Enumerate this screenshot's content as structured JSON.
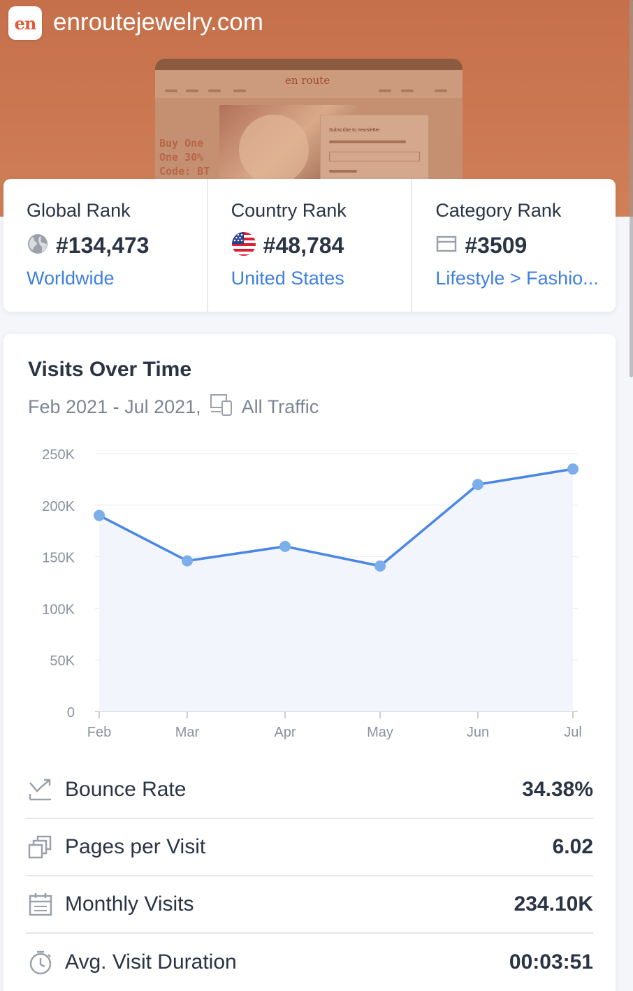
{
  "site": {
    "domain": "enroutejewelry.com",
    "logo_text": "en"
  },
  "preview": {
    "brand": "en route",
    "promo_lines": [
      "Buy One",
      "One 30%",
      "Code: BT"
    ],
    "modal_title": "Subscribe to newsletter"
  },
  "ranks": [
    {
      "title": "Global Rank",
      "icon": "globe-icon",
      "value": "#134,473",
      "link": "Worldwide"
    },
    {
      "title": "Country Rank",
      "icon": "us-flag-icon",
      "value": "#48,784",
      "link": "United States"
    },
    {
      "title": "Category Rank",
      "icon": "category-icon",
      "value": "#3509",
      "link": "Lifestyle > Fashio..."
    }
  ],
  "visits": {
    "title": "Visits Over Time",
    "period": "Feb 2021 - Jul 2021,",
    "traffic": "All Traffic"
  },
  "chart_data": {
    "type": "area",
    "categories": [
      "Feb",
      "Mar",
      "Apr",
      "May",
      "Jun",
      "Jul"
    ],
    "series": [
      {
        "values": [
          190000,
          146000,
          160000,
          141000,
          220000,
          235000
        ]
      }
    ],
    "ylim": [
      0,
      250000
    ],
    "yticks": [
      0,
      50000,
      100000,
      150000,
      200000,
      250000
    ],
    "ytick_labels": [
      "0",
      "50K",
      "100K",
      "150K",
      "200K",
      "250K"
    ],
    "grid": true,
    "colors": {
      "line": "#4a87e4",
      "point": "#7baeea",
      "fill": "#f3f5fc",
      "grid": "#e9ebf0"
    }
  },
  "metrics": [
    {
      "label": "Bounce Rate",
      "value": "34.38%",
      "icon": "bounce-icon"
    },
    {
      "label": "Pages per Visit",
      "value": "6.02",
      "icon": "pages-icon"
    },
    {
      "label": "Monthly Visits",
      "value": "234.10K",
      "icon": "calendar-icon"
    },
    {
      "label": "Avg. Visit Duration",
      "value": "00:03:51",
      "icon": "timer-icon"
    }
  ]
}
